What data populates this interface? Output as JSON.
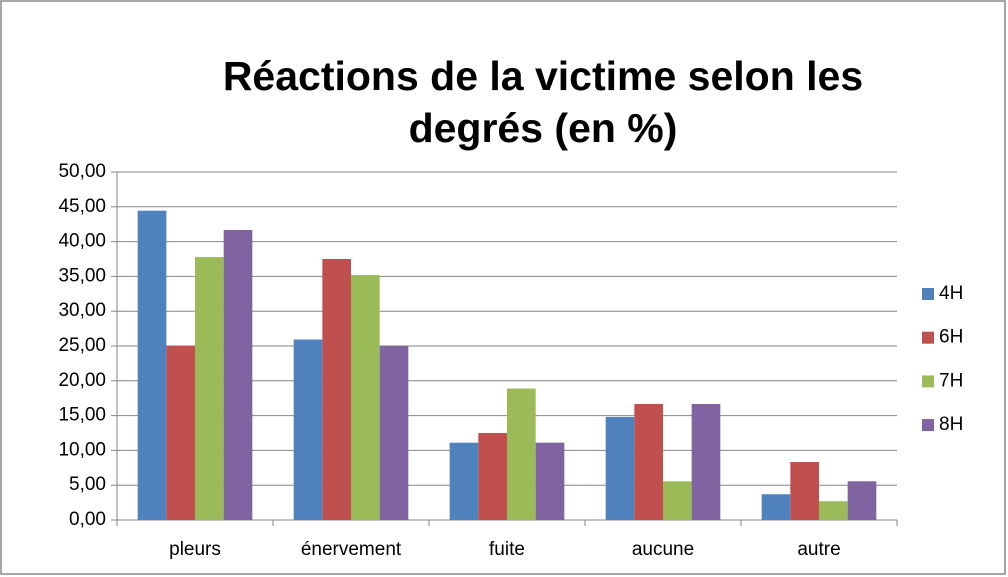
{
  "chart_data": {
    "type": "bar",
    "title": [
      "Réactions de la victime selon les",
      "degrés (en %)"
    ],
    "categories": [
      "pleurs",
      "énervement",
      "fuite",
      "aucune",
      "autre"
    ],
    "series": [
      {
        "name": "4H",
        "color": "#4f81bd",
        "values": [
          44.44,
          25.93,
          11.11,
          14.81,
          3.7
        ]
      },
      {
        "name": "6H",
        "color": "#c0504d",
        "values": [
          25,
          37.5,
          12.5,
          16.67,
          8.33
        ]
      },
      {
        "name": "7H",
        "color": "#9bbb59",
        "values": [
          37.78,
          35.19,
          18.89,
          5.56,
          2.7
        ]
      },
      {
        "name": "8H",
        "color": "#8064a2",
        "values": [
          41.67,
          25,
          11.11,
          16.67,
          5.56
        ]
      }
    ],
    "ylim": [
      0,
      50
    ],
    "yticks": [
      {
        "value": 0,
        "label": "0,00"
      },
      {
        "value": 5,
        "label": "5,00"
      },
      {
        "value": 10,
        "label": "10,00"
      },
      {
        "value": 15,
        "label": "15,00"
      },
      {
        "value": 20,
        "label": "20,00"
      },
      {
        "value": 25,
        "label": "25,00"
      },
      {
        "value": 30,
        "label": "30,00"
      },
      {
        "value": 35,
        "label": "35,00"
      },
      {
        "value": 40,
        "label": "40,00"
      },
      {
        "value": 45,
        "label": "45,00"
      },
      {
        "value": 50,
        "label": "50,00"
      }
    ],
    "grid": true,
    "legend": "right"
  }
}
